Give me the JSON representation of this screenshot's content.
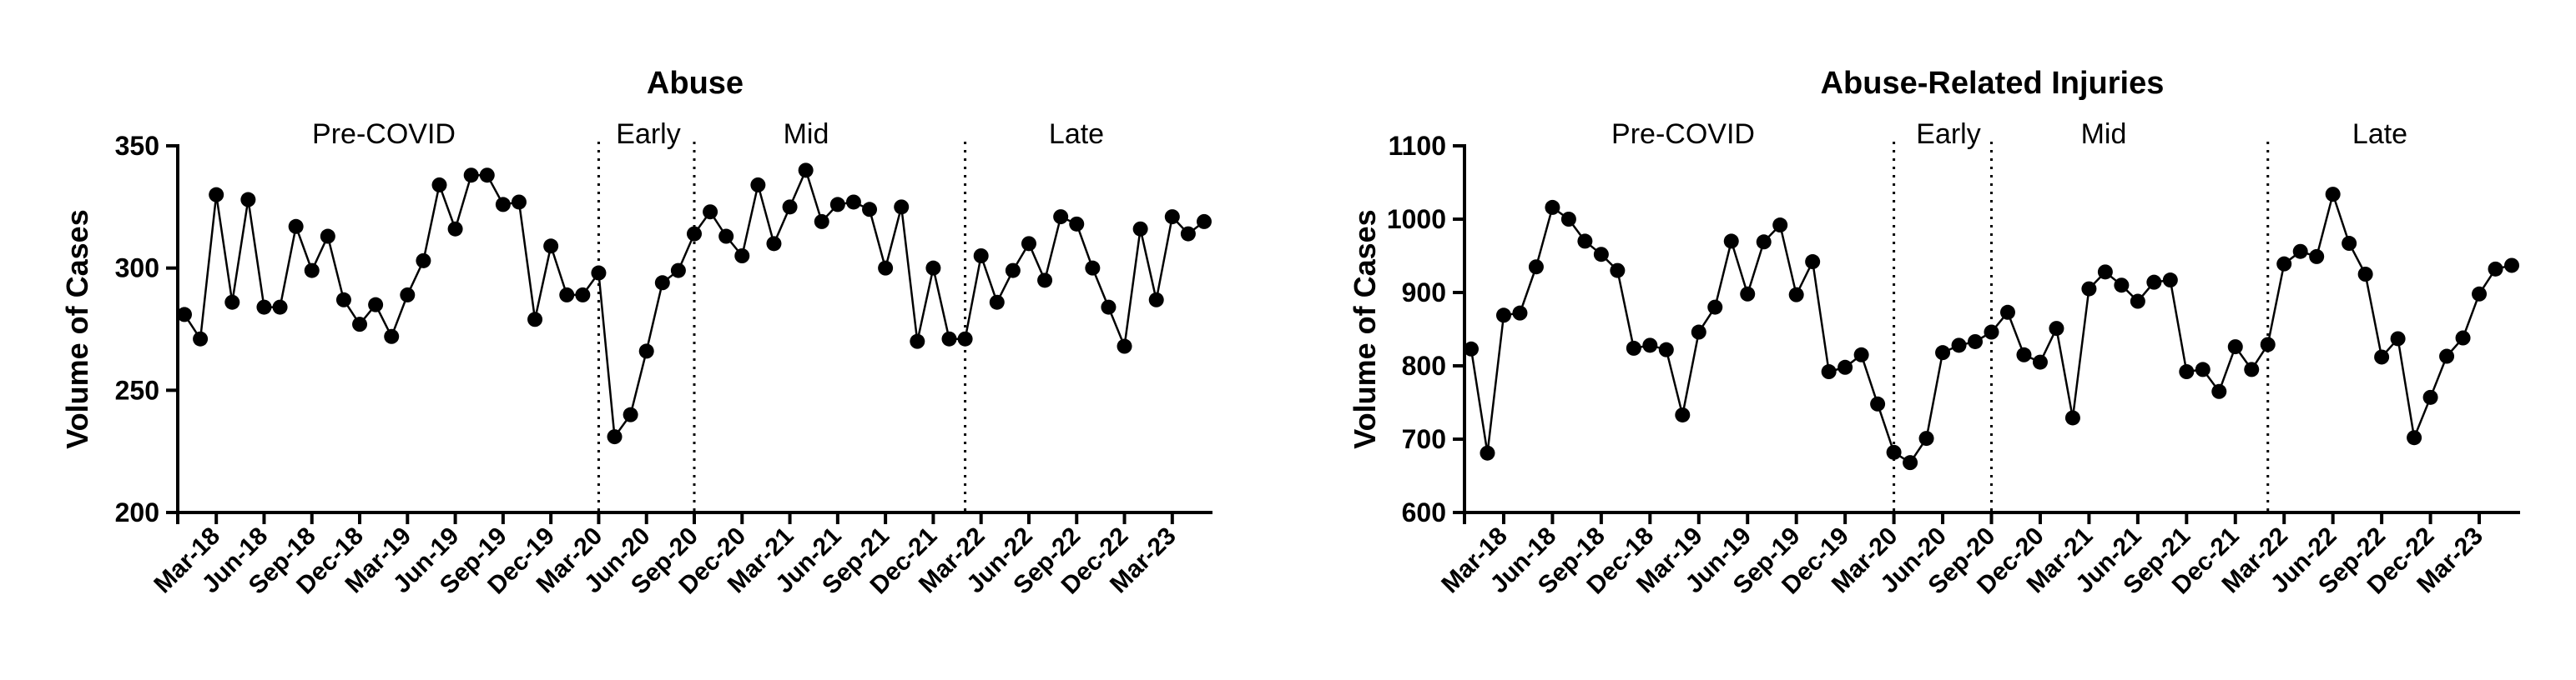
{
  "chart_data": [
    {
      "type": "line",
      "title": "Abuse",
      "xlabel": "",
      "ylabel": "Volume of Cases",
      "ylim": [
        200,
        350
      ],
      "yticks": [
        200,
        250,
        300,
        350
      ],
      "xticks": [
        "Mar-18",
        "Jun-18",
        "Sep-18",
        "Dec-18",
        "Mar-19",
        "Jun-19",
        "Sep-19",
        "Dec-19",
        "Mar-20",
        "Jun-20",
        "Sep-20",
        "Dec-20",
        "Mar-21",
        "Jun-21",
        "Sep-21",
        "Dec-21",
        "Mar-22",
        "Jun-22",
        "Sep-22",
        "Dec-22",
        "Mar-23"
      ],
      "x_start": "Jan-18",
      "phases": [
        {
          "label": "Pre-COVID"
        },
        {
          "label": "Early"
        },
        {
          "label": "Mid"
        },
        {
          "label": "Late"
        }
      ],
      "phase_dividers": [
        "Mar-20",
        "Sep-20",
        "Feb-22"
      ],
      "grid": false,
      "legend": "none",
      "series": [
        {
          "values": [
            281,
            271,
            330,
            286,
            328,
            284,
            284,
            317,
            299,
            313,
            287,
            277,
            285,
            272,
            289,
            303,
            334,
            316,
            338,
            338,
            326,
            327,
            279,
            309,
            289,
            289,
            298,
            231,
            240,
            266,
            294,
            299,
            314,
            323,
            313,
            305,
            334,
            310,
            325,
            340,
            319,
            326,
            327,
            324,
            300,
            325,
            270,
            300,
            271,
            271,
            305,
            286,
            299,
            310,
            295,
            321,
            318,
            300,
            284,
            268,
            316,
            287,
            321,
            314,
            319
          ]
        }
      ]
    },
    {
      "type": "line",
      "title": "Abuse-Related Injuries",
      "xlabel": "",
      "ylabel": "Volume of Cases",
      "ylim": [
        600,
        1100
      ],
      "yticks": [
        600,
        700,
        800,
        900,
        1000,
        1100
      ],
      "xticks": [
        "Mar-18",
        "Jun-18",
        "Sep-18",
        "Dec-18",
        "Mar-19",
        "Jun-19",
        "Sep-19",
        "Dec-19",
        "Mar-20",
        "Jun-20",
        "Sep-20",
        "Dec-20",
        "Mar-21",
        "Jun-21",
        "Sep-21",
        "Dec-21",
        "Mar-22",
        "Jun-22",
        "Sep-22",
        "Dec-22",
        "Mar-23"
      ],
      "x_start": "Jan-18",
      "phases": [
        {
          "label": "Pre-COVID"
        },
        {
          "label": "Early"
        },
        {
          "label": "Mid"
        },
        {
          "label": "Late"
        }
      ],
      "phase_dividers": [
        "Mar-20",
        "Sep-20",
        "Feb-22"
      ],
      "grid": false,
      "legend": "none",
      "series": [
        {
          "values": [
            823,
            681,
            869,
            872,
            935,
            1016,
            1000,
            970,
            952,
            930,
            824,
            828,
            822,
            733,
            846,
            880,
            970,
            898,
            969,
            992,
            897,
            942,
            792,
            798,
            815,
            748,
            682,
            668,
            701,
            818,
            828,
            833,
            846,
            873,
            815,
            805,
            851,
            729,
            905,
            928,
            910,
            888,
            914,
            917,
            792,
            795,
            765,
            826,
            795,
            829,
            939,
            956,
            949,
            1034,
            967,
            925,
            812,
            837,
            702,
            757,
            813,
            838,
            898,
            932,
            937
          ]
        }
      ]
    }
  ]
}
